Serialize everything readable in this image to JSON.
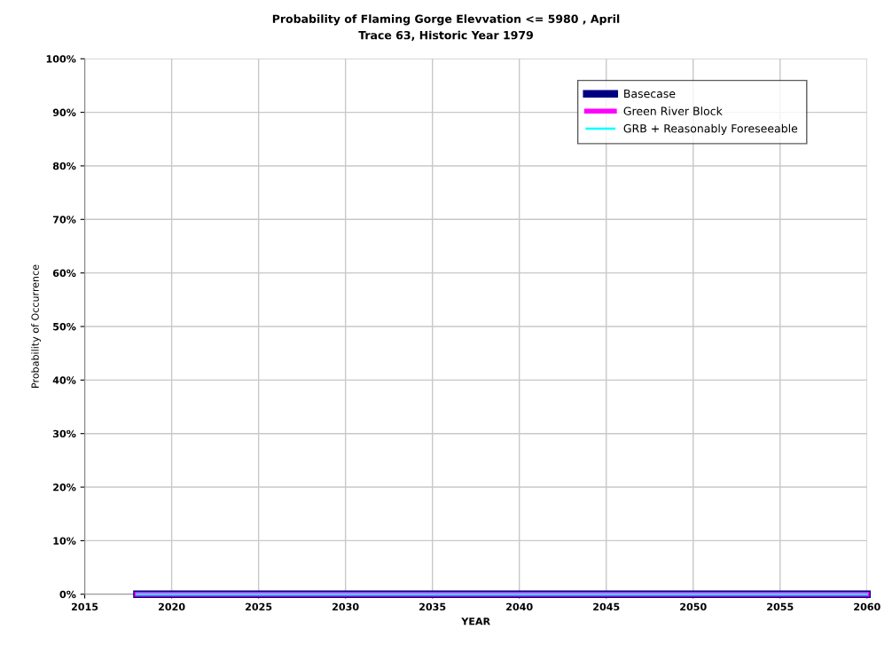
{
  "chart_data": {
    "type": "line",
    "title": "Probability of Flaming Gorge Elevvation <= 5980 , April",
    "subtitle": "Trace 63, Historic Year 1979",
    "xlabel": "YEAR",
    "ylabel": "Probability of Occurrence",
    "x": [
      2018,
      2060
    ],
    "series": [
      {
        "name": "Basecase",
        "color": "#000080",
        "values": [
          0,
          0
        ]
      },
      {
        "name": "Green River Block",
        "color": "#ff00ff",
        "values": [
          0,
          0
        ]
      },
      {
        "name": "GRB + Reasonably Foreseeable",
        "color": "#00ffff",
        "values": [
          0,
          0
        ]
      }
    ],
    "xlim": [
      2015,
      2060
    ],
    "xticks": [
      2015,
      2020,
      2025,
      2030,
      2035,
      2040,
      2045,
      2050,
      2055,
      2060
    ],
    "ylim": [
      0,
      100
    ],
    "yticks": [
      {
        "value": 0,
        "label": "0%"
      },
      {
        "value": 10,
        "label": "10%"
      },
      {
        "value": 20,
        "label": "20%"
      },
      {
        "value": 30,
        "label": "30%"
      },
      {
        "value": 40,
        "label": "40%"
      },
      {
        "value": 50,
        "label": "50%"
      },
      {
        "value": 60,
        "label": "60%"
      },
      {
        "value": 70,
        "label": "70%"
      },
      {
        "value": 80,
        "label": "80%"
      },
      {
        "value": 90,
        "label": "90%"
      },
      {
        "value": 100,
        "label": "100%"
      }
    ],
    "grid": true,
    "legend": "top right",
    "marker": "none",
    "line_style": "solid"
  }
}
